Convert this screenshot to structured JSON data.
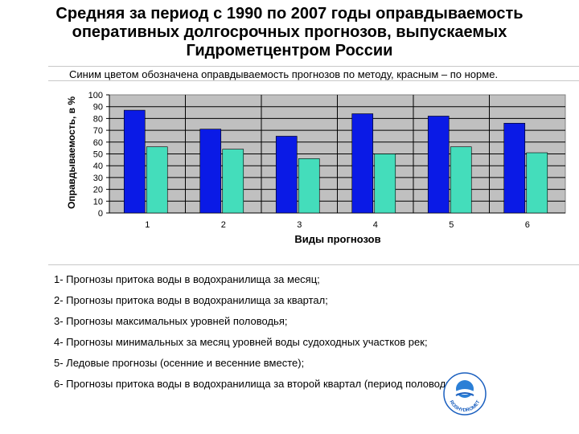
{
  "title": {
    "line1": "Средняя за период с 1990 по 2007  годы оправдываемость",
    "line2": "оперативных долгосрочных прогнозов, выпускаемых",
    "line3": "Гидрометцентром России"
  },
  "note": "Синим цветом обозначена оправдываемость прогнозов по методу, красным – по норме.",
  "chart_data": {
    "type": "bar",
    "categories": [
      "1",
      "2",
      "3",
      "4",
      "5",
      "6"
    ],
    "series": [
      {
        "color": "#0a1ae6",
        "values": [
          87,
          71,
          65,
          84,
          82,
          76
        ]
      },
      {
        "color": "#44ddbb",
        "values": [
          56,
          54,
          46,
          50,
          56,
          51
        ]
      }
    ],
    "xlabel": "Виды прогнозов",
    "ylabel": "Оправдываемость, в %",
    "ylim": [
      0,
      100
    ],
    "yticks": [
      0,
      10,
      20,
      30,
      40,
      50,
      60,
      70,
      80,
      90,
      100
    ],
    "grid": true,
    "plot_background": "#c0c0c0"
  },
  "legend_items": [
    "1- Прогнозы притока воды в водохранилища за месяц;",
    "2- Прогнозы притока воды в водохранилища за квартал;",
    "3- Прогнозы максимальных уровней половодья;",
    "4- Прогнозы минимальных за месяц уровней воды судоходных участков рек;",
    "5- Ледовые прогнозы (осенние и весенние вместе);",
    "6- Прогнозы притока воды в водохранилища за второй квартал (период половодья)."
  ],
  "logo": {
    "text": "ROSHYDROMET",
    "color": "#1a5fbf"
  }
}
